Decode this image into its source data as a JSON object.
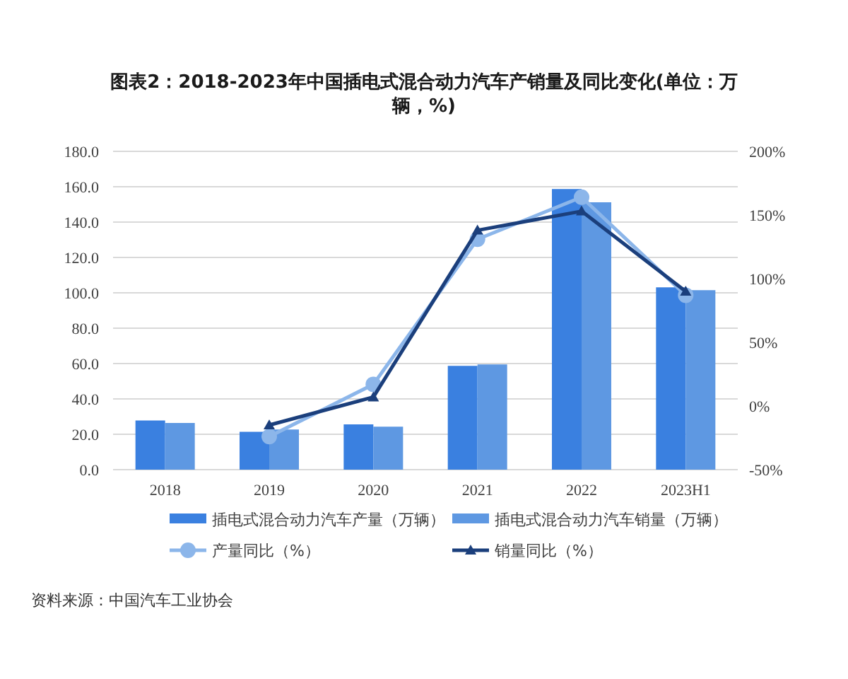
{
  "chart_data": {
    "type": "bar",
    "title": "图表2：2018-2023年中国插电式混合动力汽车产销量及同比变化(单位：万辆，%)",
    "categories": [
      "2018",
      "2019",
      "2020",
      "2021",
      "2022",
      "2023H1"
    ],
    "series": [
      {
        "name": "插电式混合动力汽车产量（万辆）",
        "color": "#3a80e0",
        "values": [
          27.8,
          21.4,
          25.6,
          58.7,
          158.7,
          103.1
        ]
      },
      {
        "name": "插电式混合动力汽车销量（万辆）",
        "color": "#5e98e2",
        "values": [
          26.4,
          22.7,
          24.3,
          59.5,
          151.2,
          101.5
        ]
      },
      {
        "name": "产量同比（%）",
        "type": "line",
        "axis": "y2",
        "marker": "circle",
        "color": "#8cb6ea",
        "values": [
          null,
          -24,
          17,
          131,
          164,
          87
        ]
      },
      {
        "name": "销量同比（%）",
        "type": "line",
        "axis": "y2",
        "marker": "triangle",
        "color": "#1b3f7c",
        "values": [
          null,
          -15,
          7,
          138,
          153,
          90
        ]
      }
    ],
    "ylim": [
      0,
      180
    ],
    "yticks": [
      {
        "value": 0,
        "label": "0.0"
      },
      {
        "value": 20,
        "label": "20.0"
      },
      {
        "value": 40,
        "label": "40.0"
      },
      {
        "value": 60,
        "label": "60.0"
      },
      {
        "value": 80,
        "label": "80.0"
      },
      {
        "value": 100,
        "label": "100.0"
      },
      {
        "value": 120,
        "label": "120.0"
      },
      {
        "value": 140,
        "label": "140.0"
      },
      {
        "value": 160,
        "label": "160.0"
      },
      {
        "value": 180,
        "label": "180.0"
      }
    ],
    "y2lim": [
      -50,
      200
    ],
    "y2ticks": [
      {
        "value": -50,
        "label": "-50%"
      },
      {
        "value": 0,
        "label": "0%"
      },
      {
        "value": 50,
        "label": "50%"
      },
      {
        "value": 100,
        "label": "100%"
      },
      {
        "value": 150,
        "label": "150%"
      },
      {
        "value": 200,
        "label": "200%"
      }
    ],
    "grid": "y",
    "legend": "bottom",
    "annotations": [
      "资料来源：中国汽车工业协会"
    ]
  }
}
